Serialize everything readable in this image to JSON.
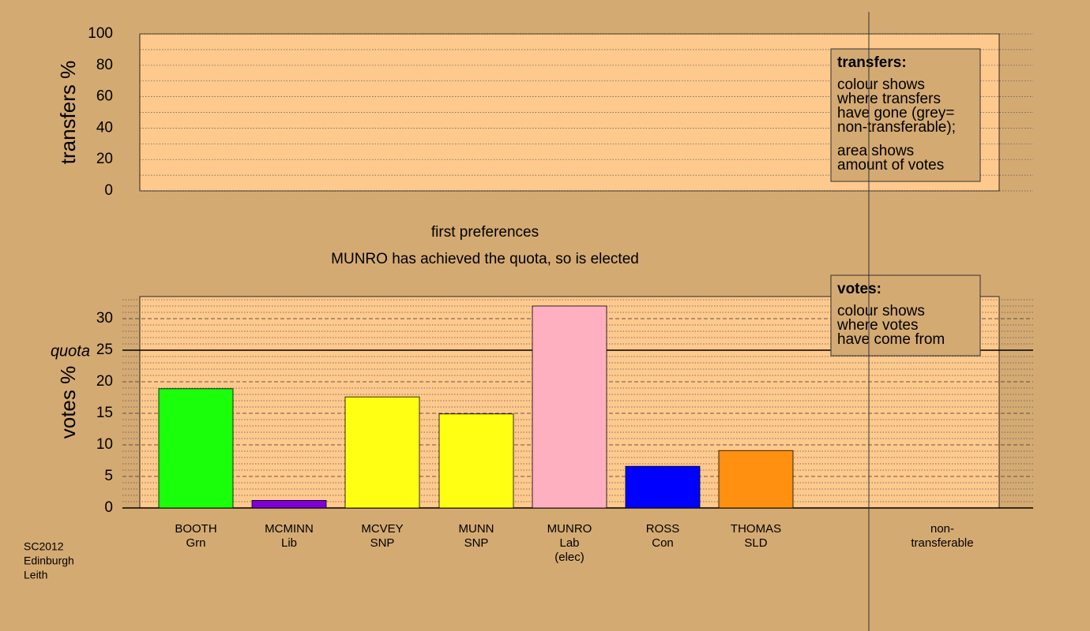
{
  "chart_data": [
    {
      "type": "bar",
      "ylabel": "transfers %",
      "ylim": [
        0,
        100
      ],
      "yticks": [
        0,
        20,
        40,
        60,
        80,
        100
      ],
      "yminor": [
        10,
        30,
        50,
        70,
        90
      ],
      "legend_note": {
        "heading": "transfers:",
        "lines": [
          "colour shows",
          "where transfers",
          "have gone (grey=",
          "non-transferable);",
          "area shows",
          "amount of votes"
        ]
      }
    },
    {
      "type": "bar",
      "title": "first preferences",
      "subtitle": "MUNRO has achieved the quota, so is elected",
      "ylabel": "votes %",
      "ylim": [
        0,
        33.5
      ],
      "yticks": [
        0,
        5,
        10,
        15,
        20,
        25,
        30
      ],
      "yminor": [
        1,
        2,
        3,
        4,
        6,
        7,
        8,
        9,
        11,
        12,
        13,
        14,
        16,
        17,
        18,
        19,
        21,
        22,
        23,
        24,
        26,
        27,
        28,
        29,
        31,
        32,
        33
      ],
      "quota": {
        "value": 25,
        "label": "quota"
      },
      "categories": [
        [
          "BOOTH",
          "Grn"
        ],
        [
          "MCMINN",
          "Lib"
        ],
        [
          "MCVEY",
          "SNP"
        ],
        [
          "MUNN",
          "SNP"
        ],
        [
          "MUNRO",
          "Lab",
          "(elec)"
        ],
        [
          "ROSS",
          "Con"
        ],
        [
          "THOMAS",
          "SLD"
        ],
        [
          "non-",
          "transferable"
        ]
      ],
      "values": [
        18.9,
        1.2,
        17.6,
        14.9,
        32,
        6.6,
        9.1,
        null
      ],
      "colors": [
        "#1aff0a",
        "#7f00d6",
        "#ffff14",
        "#ffff14",
        "#ffb0c0",
        "#0000ff",
        "#ff9010",
        null
      ],
      "legend_note": {
        "heading": "votes:",
        "lines": [
          "colour shows",
          "where votes",
          "have come from"
        ]
      }
    }
  ],
  "footer": [
    "SC2012",
    "Edinburgh",
    "Leith"
  ]
}
